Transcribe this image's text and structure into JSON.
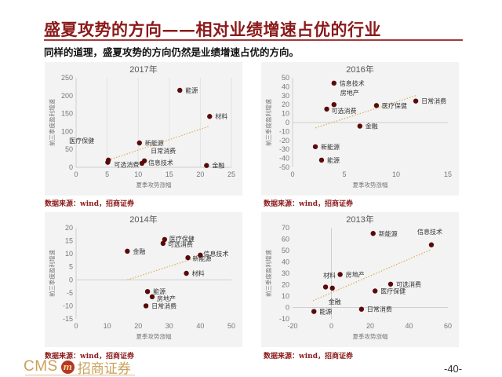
{
  "header": {
    "title": "盛夏攻势的方向——相对业绩增速占优的行业",
    "subtitle": "同样的道理，盛夏攻势的方向仍然是业绩增速占优的方向。"
  },
  "colors": {
    "title": "#8b1a1a",
    "point": "#5a0a0a",
    "trendline": "#e0b060",
    "panel_bg": "#f3f3f3",
    "logo_gold": "#c9a25a"
  },
  "sources": [
    "数据来源：wind，招商证券",
    "数据来源：wind，招商证券",
    "数据来源：wind，招商证券",
    "数据来源：wind，招商证券"
  ],
  "footer": {
    "logo_text": "CMS",
    "logo_cn": "招商证券",
    "page_number": "-40-"
  },
  "chart_data": [
    {
      "type": "scatter",
      "title": "2017年",
      "xlabel": "夏季攻势涨幅",
      "ylabel": "前三季度盈利增速",
      "xlim": [
        0,
        25
      ],
      "ylim": [
        0,
        250
      ],
      "xticks": [
        0,
        5,
        10,
        15,
        20,
        25
      ],
      "yticks": [
        0,
        50,
        100,
        150,
        200,
        250
      ],
      "points": [
        {
          "label": "能源",
          "x": 16.7,
          "y": 215
        },
        {
          "label": "材料",
          "x": 21.5,
          "y": 142
        },
        {
          "label": "新能源",
          "x": 10.2,
          "y": 68
        },
        {
          "label": "医疗保健",
          "x": 5.2,
          "y": 20
        },
        {
          "label": "可选消费",
          "x": 5.1,
          "y": 14
        },
        {
          "label": "日常消费",
          "x": 11.0,
          "y": 18
        },
        {
          "label": "信息技术",
          "x": 10.6,
          "y": 11
        },
        {
          "label": "金融",
          "x": 21.0,
          "y": 5
        }
      ],
      "trendline": {
        "x1": 5.2,
        "y1": 20,
        "x2": 21.5,
        "y2": 115
      },
      "grid": "vertical"
    },
    {
      "type": "scatter",
      "title": "2016年",
      "xlabel": "夏季攻势涨幅",
      "ylabel": "前三季度盈利增速",
      "xlim": [
        0,
        15
      ],
      "ylim": [
        -50,
        50
      ],
      "xticks": [
        0,
        5,
        10,
        15
      ],
      "yticks": [
        -50,
        -40,
        -30,
        -20,
        -10,
        0,
        10,
        20,
        30,
        40,
        50
      ],
      "points": [
        {
          "label": "信息技术",
          "x": 4.0,
          "y": 44
        },
        {
          "label": "房地产",
          "x": 4.0,
          "y": 20
        },
        {
          "label": "可选消费",
          "x": 3.3,
          "y": 15
        },
        {
          "label": "医疗保健",
          "x": 8.1,
          "y": 19
        },
        {
          "label": "日常消费",
          "x": 11.9,
          "y": 24
        },
        {
          "label": "金融",
          "x": 6.5,
          "y": -4
        },
        {
          "label": "新能源",
          "x": 2.2,
          "y": -27
        },
        {
          "label": "能源",
          "x": 2.8,
          "y": -42
        }
      ],
      "trendline": {
        "x1": 2.2,
        "y1": -6,
        "x2": 11.9,
        "y2": 30
      },
      "grid": "none"
    },
    {
      "type": "scatter",
      "title": "2014年",
      "xlabel": "夏季攻势涨幅",
      "ylabel": "前三季度盈利增速",
      "xlim": [
        0,
        50
      ],
      "ylim": [
        -15,
        20
      ],
      "xticks": [
        0,
        10,
        20,
        30,
        40,
        50
      ],
      "yticks": [
        -15,
        -10,
        -5,
        0,
        5,
        10,
        15,
        20
      ],
      "points": [
        {
          "label": "医疗保健",
          "x": 28.5,
          "y": 15.5
        },
        {
          "label": "可选消费",
          "x": 28.0,
          "y": 14.0
        },
        {
          "label": "金融",
          "x": 16.5,
          "y": 11
        },
        {
          "label": "新能源",
          "x": 36.0,
          "y": 8.5
        },
        {
          "label": "信息技术",
          "x": 40.0,
          "y": 9.5
        },
        {
          "label": "材料",
          "x": 35.5,
          "y": 2.5
        },
        {
          "label": "能源",
          "x": 23.0,
          "y": -4.5
        },
        {
          "label": "房地产",
          "x": 24.5,
          "y": -6.5
        },
        {
          "label": "日常消费",
          "x": 22.5,
          "y": -10
        }
      ],
      "trendline": {
        "x1": 16.5,
        "y1": 0,
        "x2": 40.0,
        "y2": 9
      },
      "grid": "none"
    },
    {
      "type": "scatter",
      "title": "2013年",
      "xlabel": "夏季攻势涨幅",
      "ylabel": "前三季度盈利增速",
      "xlim": [
        -20,
        60
      ],
      "ylim": [
        -10,
        70
      ],
      "xticks": [
        -20,
        0,
        20,
        40,
        60
      ],
      "yticks": [
        -10,
        0,
        10,
        20,
        30,
        40,
        50,
        60,
        70
      ],
      "points": [
        {
          "label": "新能源",
          "x": 21.5,
          "y": 65
        },
        {
          "label": "信息技术",
          "x": 51.5,
          "y": 55
        },
        {
          "label": "房地产",
          "x": 4.5,
          "y": 29
        },
        {
          "label": "材料",
          "x": -3.0,
          "y": 18
        },
        {
          "label": "金融",
          "x": 0.5,
          "y": 17
        },
        {
          "label": "可选消费",
          "x": 30.5,
          "y": 20.5
        },
        {
          "label": "医疗保健",
          "x": 22.5,
          "y": 14.5
        },
        {
          "label": "日常消费",
          "x": 15.5,
          "y": -1.5
        },
        {
          "label": "能源",
          "x": -9.0,
          "y": -3.5
        }
      ],
      "trendline": {
        "x1": -9.5,
        "y1": 6,
        "x2": 51.5,
        "y2": 51
      },
      "grid": "none"
    }
  ]
}
